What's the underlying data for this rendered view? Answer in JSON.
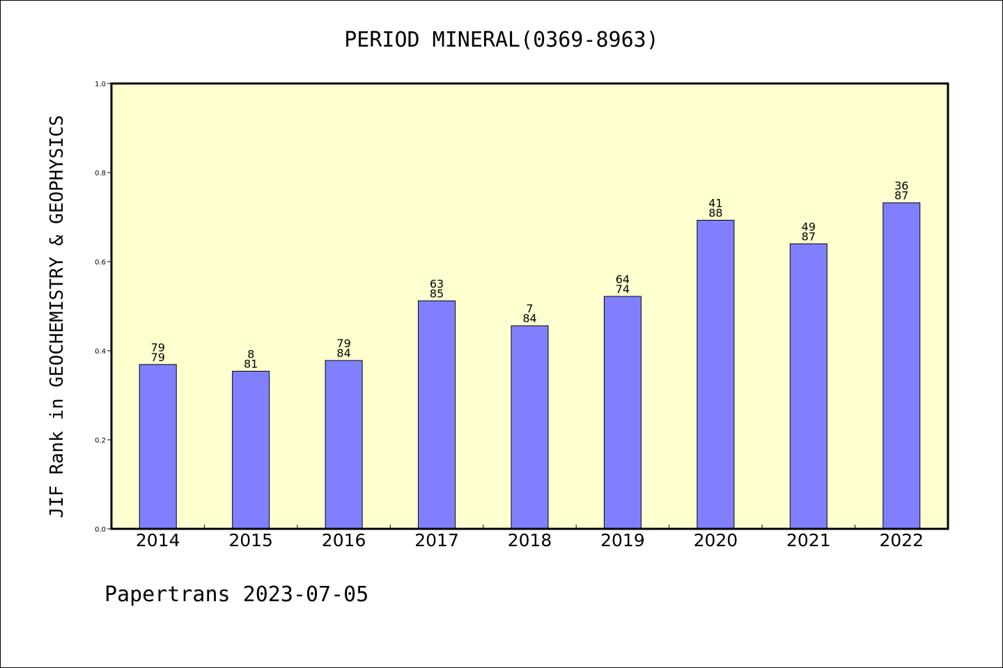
{
  "chart_data": {
    "type": "bar",
    "title": "PERIOD MINERAL(0369-8963)",
    "xlabel": "",
    "ylabel": "JIF Rank in GEOCHEMISTRY & GEOPHYSICS",
    "ylim": [
      0,
      1.0
    ],
    "yticks": [
      "0.0",
      "0.2",
      "0.4",
      "0.6",
      "0.8",
      "1.0"
    ],
    "categories": [
      "2014",
      "2015",
      "2016",
      "2017",
      "2018",
      "2019",
      "2020",
      "2021",
      "2022"
    ],
    "values": [
      0.369,
      0.354,
      0.378,
      0.512,
      0.456,
      0.522,
      0.693,
      0.64,
      0.732
    ],
    "rank_labels": [
      "79",
      "8",
      "79",
      "63",
      "7",
      "64",
      "41",
      "49",
      "36"
    ],
    "total_labels": [
      "79",
      "81",
      "84",
      "85",
      "84",
      "74",
      "88",
      "87",
      "87"
    ],
    "grid": false,
    "colors": {
      "bar": "#8080ff",
      "plot_bg": "#ffffd0",
      "frame": "#000000"
    }
  },
  "footer": "Papertrans 2023-07-05"
}
